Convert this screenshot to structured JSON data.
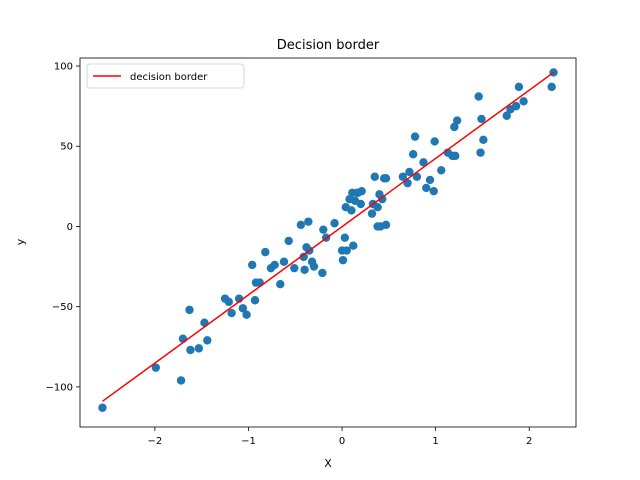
{
  "chart_data": {
    "type": "scatter",
    "title": "Decision border",
    "xlabel": "X",
    "ylabel": "y",
    "xlim": [
      -2.8,
      2.5
    ],
    "ylim": [
      -125,
      105
    ],
    "xticks": [
      -2,
      -1,
      0,
      1,
      2
    ],
    "yticks": [
      -100,
      -50,
      0,
      50,
      100
    ],
    "xtick_labels": [
      "−2",
      "−1",
      "0",
      "1",
      "2"
    ],
    "ytick_labels": [
      "−100",
      "−50",
      "0",
      "50",
      "100"
    ],
    "grid": false,
    "legend_position": "top-left",
    "colors": {
      "points": "#1f77b4",
      "line": "#ff0000"
    },
    "series": [
      {
        "kind": "points",
        "x": [
          -2.56,
          -1.99,
          -1.72,
          -1.7,
          -1.63,
          -1.62,
          -1.53,
          -1.47,
          -1.44,
          -1.25,
          -1.21,
          -1.18,
          -1.1,
          -1.06,
          -1.02,
          -0.96,
          -0.93,
          -0.92,
          -0.88,
          -0.82,
          -0.76,
          -0.72,
          -0.66,
          -0.62,
          -0.57,
          -0.51,
          -0.44,
          -0.41,
          -0.4,
          -0.38,
          -0.36,
          -0.35,
          -0.32,
          -0.3,
          -0.21,
          -0.2,
          -0.17,
          -0.08,
          0.0,
          0.01,
          0.03,
          0.04,
          0.05,
          0.08,
          0.1,
          0.11,
          0.12,
          0.14,
          0.16,
          0.17,
          0.2,
          0.21,
          0.32,
          0.33,
          0.35,
          0.38,
          0.38,
          0.4,
          0.41,
          0.43,
          0.45,
          0.47,
          0.47,
          0.65,
          0.7,
          0.72,
          0.76,
          0.78,
          0.8,
          0.87,
          0.9,
          0.94,
          0.98,
          0.99,
          1.06,
          1.13,
          1.18,
          1.2,
          1.21,
          1.23,
          1.46,
          1.48,
          1.49,
          1.51,
          1.76,
          1.8,
          1.86,
          1.89,
          1.94,
          2.24,
          2.26
        ],
        "y": [
          -113,
          -88,
          -96,
          -70,
          -52,
          -77,
          -76,
          -60,
          -71,
          -45,
          -47,
          -54,
          -45,
          -51,
          -55,
          -24,
          -46,
          -35,
          -35,
          -16,
          -26,
          -24,
          -36,
          -22,
          -9,
          -26,
          1,
          -19,
          -27,
          -13,
          3,
          -15,
          -22,
          -25,
          -29,
          -2,
          -7,
          2,
          -15,
          -21,
          -7,
          12,
          -15,
          17,
          10,
          21,
          -12,
          16,
          21,
          21,
          14,
          22,
          8,
          14,
          31,
          0,
          12,
          20,
          0,
          17,
          30,
          1,
          30,
          31,
          27,
          34,
          45,
          56,
          31,
          40,
          24,
          29,
          22,
          53,
          35,
          46,
          44,
          62,
          44,
          66,
          81,
          46,
          67,
          54,
          69,
          73,
          75,
          87,
          78,
          87,
          96
        ]
      },
      {
        "kind": "line",
        "name": "decision border",
        "x": [
          -2.56,
          2.26
        ],
        "y": [
          -109,
          96
        ]
      }
    ]
  }
}
